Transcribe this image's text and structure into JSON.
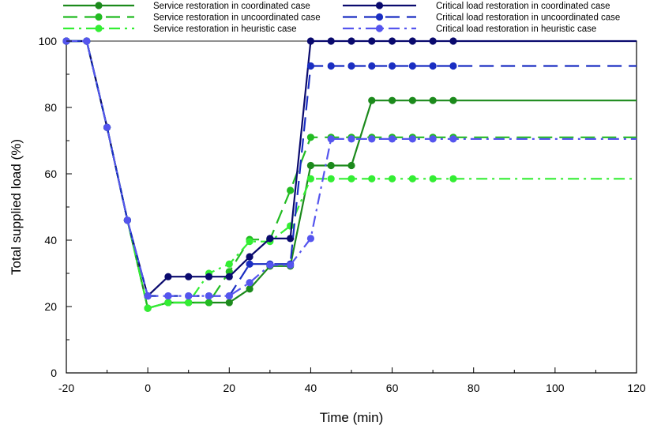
{
  "chart_data": {
    "type": "line",
    "xlabel": "Time (min)",
    "ylabel": "Total supplied load (%)",
    "xlim": [
      -20,
      120
    ],
    "ylim": [
      0,
      100
    ],
    "xticks": [
      -20,
      0,
      20,
      40,
      60,
      80,
      100,
      120
    ],
    "yticks": [
      0,
      20,
      40,
      60,
      80,
      100
    ],
    "xtick_labels": [
      "-20",
      "0",
      "20",
      "40",
      "60",
      "80",
      "100",
      "120"
    ],
    "ytick_labels": [
      "0",
      "20",
      "40",
      "60",
      "80",
      "100"
    ],
    "grid": false,
    "legend_position": "top",
    "reference_line": 100,
    "series": [
      {
        "name": "Service restoration in coordinated case",
        "color": "#1c8a1c",
        "dash": "solid",
        "x": [
          -20,
          -15,
          -10,
          -5,
          0,
          5,
          10,
          15,
          20,
          25,
          30,
          35,
          40,
          45,
          50,
          55,
          60,
          65,
          70,
          75,
          120
        ],
        "y": [
          100,
          100,
          74,
          46,
          19.5,
          21.2,
          21.2,
          21.2,
          21.2,
          25.3,
          32.2,
          32.2,
          62.5,
          62.5,
          62.5,
          82.1,
          82.1,
          82.1,
          82.1,
          82.1,
          82.1
        ]
      },
      {
        "name": "Service restoration in uncoordinated case",
        "color": "#22bb22",
        "dash": "dashed",
        "x": [
          -20,
          -15,
          -10,
          -5,
          0,
          5,
          10,
          15,
          20,
          25,
          30,
          35,
          40,
          45,
          50,
          55,
          60,
          65,
          70,
          75,
          120
        ],
        "y": [
          100,
          100,
          74,
          46,
          19.5,
          21.2,
          21.2,
          21.2,
          30.5,
          40.2,
          40.2,
          55,
          71,
          71,
          71,
          71,
          71,
          71,
          71,
          71,
          71
        ]
      },
      {
        "name": "Service restoration in heuristic case",
        "color": "#33ee33",
        "dash": "dashdot",
        "x": [
          -20,
          -15,
          -10,
          -5,
          0,
          5,
          10,
          15,
          20,
          25,
          30,
          35,
          40,
          45,
          50,
          55,
          60,
          65,
          70,
          75,
          120
        ],
        "y": [
          100,
          100,
          74,
          46,
          19.5,
          21.2,
          21.2,
          30,
          32.8,
          39.6,
          39.6,
          44.3,
          58.5,
          58.5,
          58.5,
          58.5,
          58.5,
          58.5,
          58.5,
          58.5,
          58.5
        ]
      },
      {
        "name": "Critical load restoration in coordinated case",
        "color": "#0a0a6e",
        "dash": "solid",
        "x": [
          -20,
          -15,
          -10,
          -5,
          0,
          5,
          10,
          15,
          20,
          25,
          30,
          35,
          40,
          45,
          50,
          55,
          60,
          65,
          70,
          75,
          120
        ],
        "y": [
          100,
          100,
          74,
          46,
          23.2,
          29,
          29,
          29,
          29,
          35,
          40.5,
          40.5,
          100,
          100,
          100,
          100,
          100,
          100,
          100,
          100,
          100
        ]
      },
      {
        "name": "Critical load restoration in uncoordinated case",
        "color": "#1a2ec2",
        "dash": "dashed",
        "x": [
          -20,
          -15,
          -10,
          -5,
          0,
          5,
          10,
          15,
          20,
          25,
          30,
          35,
          40,
          45,
          50,
          55,
          60,
          65,
          70,
          75,
          120
        ],
        "y": [
          100,
          100,
          74,
          46,
          23.2,
          23.2,
          23.2,
          23.2,
          23.2,
          32.8,
          32.8,
          32.8,
          92.5,
          92.5,
          92.5,
          92.5,
          92.5,
          92.5,
          92.5,
          92.5,
          92.5
        ]
      },
      {
        "name": "Critical load restoration in heuristic case",
        "color": "#5555ee",
        "dash": "dashdot",
        "x": [
          -20,
          -15,
          -10,
          -5,
          0,
          5,
          10,
          15,
          20,
          25,
          30,
          35,
          40,
          45,
          50,
          55,
          60,
          65,
          70,
          75,
          120
        ],
        "y": [
          100,
          100,
          74,
          46,
          23.2,
          23.2,
          23.2,
          23.2,
          23.2,
          27.2,
          32.5,
          32.5,
          40.5,
          70.5,
          70.5,
          70.5,
          70.5,
          70.5,
          70.5,
          70.5,
          70.5
        ]
      }
    ]
  }
}
